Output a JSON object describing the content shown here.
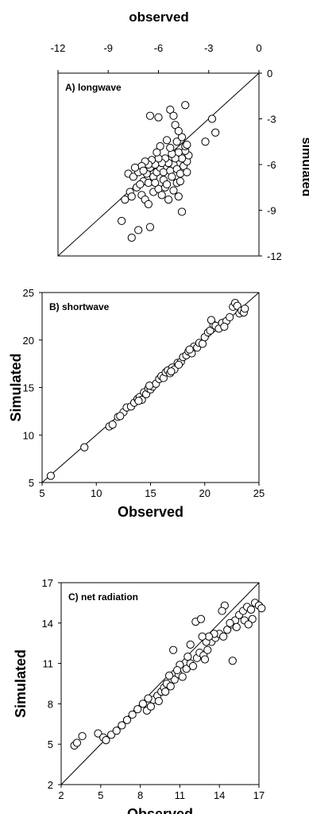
{
  "chart_data": [
    {
      "type": "scatter",
      "panel_label": "A) longwave",
      "xlabel": "observed",
      "ylabel": "simulated",
      "xlim": [
        -12,
        0
      ],
      "ylim": [
        -12,
        0
      ],
      "xticks": [
        "-12",
        "-9",
        "-6",
        "-3",
        "0"
      ],
      "yticks": [
        "0",
        "-3",
        "-6",
        "-9",
        "-12"
      ],
      "x_axis_position": "top",
      "y_axis_position": "right",
      "reference_line": "1:1",
      "points": [
        [
          -7.8,
          -6.6
        ],
        [
          -7.5,
          -6.8
        ],
        [
          -8.0,
          -8.3
        ],
        [
          -7.7,
          -7.8
        ],
        [
          -7.6,
          -8.1
        ],
        [
          -7.3,
          -7.5
        ],
        [
          -7.0,
          -8.0
        ],
        [
          -6.8,
          -8.3
        ],
        [
          -6.6,
          -8.6
        ],
        [
          -8.2,
          -9.7
        ],
        [
          -7.6,
          -10.8
        ],
        [
          -7.2,
          -10.3
        ],
        [
          -6.5,
          -10.1
        ],
        [
          -6.3,
          -7.8
        ],
        [
          -6.0,
          -7.6
        ],
        [
          -5.8,
          -8.0
        ],
        [
          -5.6,
          -7.5
        ],
        [
          -5.4,
          -8.3
        ],
        [
          -5.1,
          -7.7
        ],
        [
          -4.9,
          -7.2
        ],
        [
          -4.6,
          -9.1
        ],
        [
          -4.8,
          -8.1
        ],
        [
          -6.9,
          -7.1
        ],
        [
          -6.7,
          -6.6
        ],
        [
          -6.5,
          -6.2
        ],
        [
          -6.3,
          -6.8
        ],
        [
          -6.1,
          -6.5
        ],
        [
          -5.9,
          -6.2
        ],
        [
          -5.7,
          -6.5
        ],
        [
          -5.5,
          -6.1
        ],
        [
          -5.3,
          -6.4
        ],
        [
          -5.1,
          -6.0
        ],
        [
          -4.9,
          -6.3
        ],
        [
          -4.7,
          -6.6
        ],
        [
          -4.5,
          -6.1
        ],
        [
          -4.3,
          -6.5
        ],
        [
          -4.3,
          -5.8
        ],
        [
          -4.2,
          -5.4
        ],
        [
          -4.4,
          -5.1
        ],
        [
          -4.6,
          -5.6
        ],
        [
          -4.8,
          -5.2
        ],
        [
          -5.0,
          -5.6
        ],
        [
          -5.2,
          -5.3
        ],
        [
          -5.4,
          -5.9
        ],
        [
          -5.6,
          -5.6
        ],
        [
          -5.8,
          -5.9
        ],
        [
          -6.0,
          -5.6
        ],
        [
          -6.2,
          -6.0
        ],
        [
          -6.4,
          -5.7
        ],
        [
          -6.6,
          -6.0
        ],
        [
          -6.8,
          -5.8
        ],
        [
          -7.0,
          -6.1
        ],
        [
          -7.2,
          -6.5
        ],
        [
          -7.4,
          -6.2
        ],
        [
          -6.1,
          -5.2
        ],
        [
          -5.9,
          -4.8
        ],
        [
          -5.5,
          -4.4
        ],
        [
          -5.3,
          -4.9
        ],
        [
          -4.9,
          -4.5
        ],
        [
          -4.6,
          -4.2
        ],
        [
          -4.4,
          -4.8
        ],
        [
          -4.3,
          -4.7
        ],
        [
          -5.0,
          -3.4
        ],
        [
          -5.3,
          -2.4
        ],
        [
          -5.1,
          -2.8
        ],
        [
          -6.0,
          -2.9
        ],
        [
          -6.5,
          -2.8
        ],
        [
          -4.4,
          -2.1
        ],
        [
          -4.8,
          -3.8
        ],
        [
          -2.8,
          -3.0
        ],
        [
          -2.6,
          -3.9
        ],
        [
          -3.2,
          -4.5
        ],
        [
          -6.6,
          -7.2
        ],
        [
          -6.2,
          -7.2
        ],
        [
          -5.7,
          -7.0
        ],
        [
          -5.2,
          -6.8
        ],
        [
          -4.7,
          -7.1
        ],
        [
          -6.9,
          -6.4
        ],
        [
          -7.1,
          -7.3
        ],
        [
          -5.5,
          -7.3
        ]
      ]
    },
    {
      "type": "scatter",
      "panel_label": "B) shortwave",
      "xlabel": "Observed",
      "ylabel": "Simulated",
      "xlim": [
        5,
        25
      ],
      "ylim": [
        5,
        25
      ],
      "xticks": [
        "5",
        "10",
        "15",
        "20",
        "25"
      ],
      "yticks": [
        "5",
        "10",
        "15",
        "20",
        "25"
      ],
      "reference_line": "1:1",
      "points": [
        [
          5.8,
          5.7
        ],
        [
          8.9,
          8.7
        ],
        [
          11.2,
          10.9
        ],
        [
          11.5,
          11.1
        ],
        [
          12.0,
          11.9
        ],
        [
          12.5,
          12.4
        ],
        [
          12.8,
          12.9
        ],
        [
          13.2,
          13.0
        ],
        [
          13.5,
          13.4
        ],
        [
          13.8,
          13.8
        ],
        [
          14.0,
          14.0
        ],
        [
          14.2,
          13.7
        ],
        [
          14.4,
          14.5
        ],
        [
          14.6,
          14.3
        ],
        [
          14.8,
          14.9
        ],
        [
          15.0,
          14.8
        ],
        [
          15.2,
          15.1
        ],
        [
          15.5,
          15.4
        ],
        [
          15.8,
          15.9
        ],
        [
          16.0,
          16.2
        ],
        [
          16.2,
          16.0
        ],
        [
          16.4,
          16.6
        ],
        [
          16.6,
          16.8
        ],
        [
          16.8,
          16.5
        ],
        [
          17.0,
          17.1
        ],
        [
          17.2,
          16.9
        ],
        [
          17.5,
          17.6
        ],
        [
          17.8,
          17.7
        ],
        [
          18.0,
          18.2
        ],
        [
          18.3,
          18.4
        ],
        [
          18.5,
          18.8
        ],
        [
          18.8,
          18.6
        ],
        [
          19.0,
          19.3
        ],
        [
          19.3,
          19.2
        ],
        [
          19.5,
          19.7
        ],
        [
          19.8,
          19.6
        ],
        [
          20.0,
          20.3
        ],
        [
          20.3,
          20.8
        ],
        [
          20.5,
          21.0
        ],
        [
          20.8,
          21.6
        ],
        [
          20.6,
          22.1
        ],
        [
          21.0,
          21.5
        ],
        [
          21.3,
          21.2
        ],
        [
          21.6,
          21.8
        ],
        [
          22.0,
          22.0
        ],
        [
          22.3,
          22.4
        ],
        [
          22.6,
          23.5
        ],
        [
          22.8,
          23.9
        ],
        [
          23.0,
          23.6
        ],
        [
          23.2,
          22.8
        ],
        [
          23.4,
          23.1
        ],
        [
          23.6,
          22.9
        ],
        [
          23.7,
          23.3
        ],
        [
          13.9,
          13.6
        ],
        [
          14.9,
          15.2
        ],
        [
          16.9,
          16.7
        ],
        [
          17.6,
          17.4
        ],
        [
          18.6,
          19.0
        ],
        [
          21.8,
          21.4
        ],
        [
          12.2,
          12.0
        ]
      ]
    },
    {
      "type": "scatter",
      "panel_label": "C) net radiation",
      "xlabel": "Observed",
      "ylabel": "Simulated",
      "xlim": [
        2,
        17
      ],
      "ylim": [
        2,
        17
      ],
      "xticks": [
        "2",
        "5",
        "8",
        "11",
        "14",
        "17"
      ],
      "yticks": [
        "2",
        "5",
        "8",
        "11",
        "14",
        "17"
      ],
      "reference_line": "1:1",
      "points": [
        [
          3.0,
          4.9
        ],
        [
          3.2,
          5.1
        ],
        [
          3.6,
          5.6
        ],
        [
          4.8,
          5.8
        ],
        [
          5.2,
          5.5
        ],
        [
          5.4,
          5.3
        ],
        [
          5.8,
          5.7
        ],
        [
          6.2,
          6.0
        ],
        [
          6.6,
          6.4
        ],
        [
          7.0,
          6.8
        ],
        [
          7.4,
          7.2
        ],
        [
          7.8,
          7.6
        ],
        [
          8.2,
          8.0
        ],
        [
          8.5,
          7.5
        ],
        [
          8.8,
          7.8
        ],
        [
          9.0,
          8.3
        ],
        [
          9.3,
          8.6
        ],
        [
          9.6,
          8.9
        ],
        [
          9.8,
          9.2
        ],
        [
          10.0,
          9.5
        ],
        [
          10.3,
          9.3
        ],
        [
          10.6,
          9.8
        ],
        [
          10.9,
          10.2
        ],
        [
          11.2,
          10.0
        ],
        [
          11.5,
          10.6
        ],
        [
          11.8,
          11.0
        ],
        [
          12.0,
          10.8
        ],
        [
          12.3,
          11.4
        ],
        [
          12.5,
          11.8
        ],
        [
          12.8,
          11.6
        ],
        [
          13.1,
          12.0
        ],
        [
          13.4,
          12.6
        ],
        [
          13.7,
          12.9
        ],
        [
          14.0,
          13.2
        ],
        [
          14.3,
          13.0
        ],
        [
          14.6,
          13.5
        ],
        [
          14.9,
          13.9
        ],
        [
          15.2,
          14.2
        ],
        [
          15.5,
          14.6
        ],
        [
          15.8,
          14.9
        ],
        [
          16.1,
          15.2
        ],
        [
          16.4,
          15.0
        ],
        [
          16.7,
          15.5
        ],
        [
          17.0,
          15.3
        ],
        [
          17.2,
          15.1
        ],
        [
          12.2,
          14.1
        ],
        [
          12.6,
          14.3
        ],
        [
          11.8,
          12.4
        ],
        [
          14.4,
          15.3
        ],
        [
          14.2,
          14.9
        ],
        [
          10.5,
          12.0
        ],
        [
          13.0,
          12.6
        ],
        [
          11.0,
          10.9
        ],
        [
          13.6,
          13.2
        ],
        [
          9.4,
          8.2
        ],
        [
          8.6,
          8.4
        ],
        [
          9.9,
          8.9
        ],
        [
          15.0,
          11.2
        ],
        [
          16.5,
          14.3
        ],
        [
          15.3,
          13.7
        ],
        [
          10.2,
          10.1
        ],
        [
          12.9,
          11.3
        ],
        [
          11.6,
          11.5
        ],
        [
          14.8,
          14.0
        ],
        [
          13.2,
          13.0
        ],
        [
          15.9,
          14.2
        ],
        [
          16.2,
          13.9
        ],
        [
          12.7,
          13.0
        ],
        [
          10.8,
          10.5
        ]
      ]
    }
  ]
}
